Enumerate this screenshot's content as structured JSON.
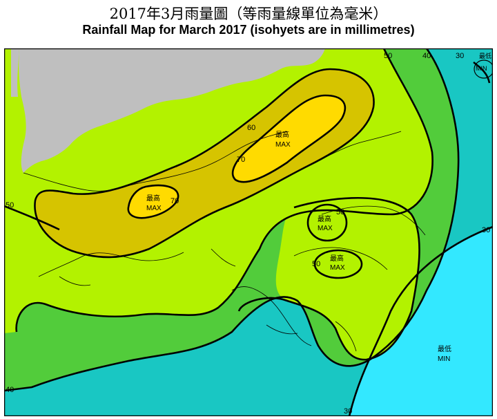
{
  "title": {
    "zh": "2017年3月雨量圖（等雨量線單位為毫米）",
    "en": "Rainfall Map for March 2017 (isohyets are in millimetres)"
  },
  "colors": {
    "band_lt30": "#33e8ff",
    "band_30_40": "#19c7c3",
    "band_40_50": "#52cc3b",
    "band_50_60": "#b3f200",
    "band_60_70": "#d6c400",
    "band_gt70": "#ffdb00",
    "land_outside": "#bfbfbf",
    "isohyet": "#000000"
  },
  "legend_values": {
    "v30": "30",
    "v40": "40",
    "v50": "50",
    "v60": "60",
    "v70": "70"
  },
  "annotations": {
    "max_zh": "最高",
    "max_en": "MAX",
    "min_zh": "最低",
    "min_en": "MIN"
  }
}
